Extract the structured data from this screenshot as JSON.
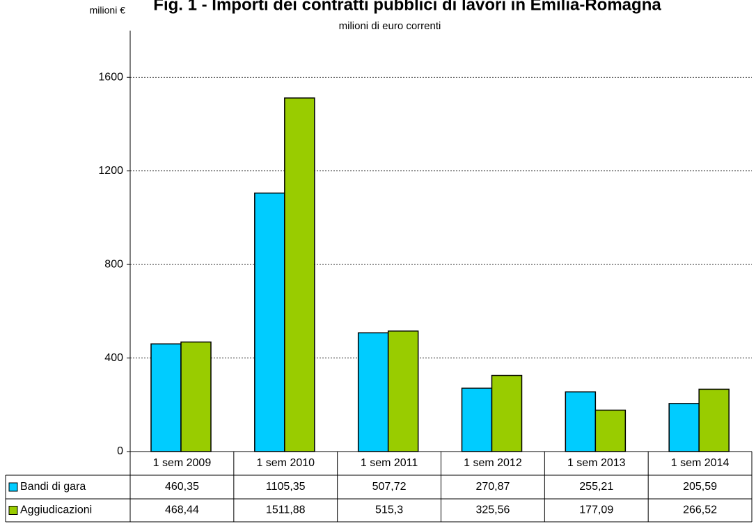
{
  "chart_data": {
    "type": "bar",
    "title": "Fig. 1 - Importi dei contratti pubblici di lavori in Emilia-Romagna",
    "subtitle": "milioni di euro correnti",
    "y_label": "milioni €",
    "categories": [
      "1 sem 2009",
      "1 sem 2010",
      "1 sem 2011",
      "1 sem 2012",
      "1 sem 2013",
      "1 sem 2014"
    ],
    "series": [
      {
        "name": "Bandi di gara",
        "color": "#00ccff",
        "values": [
          460.35,
          1105.35,
          507.72,
          270.87,
          255.21,
          205.59
        ],
        "value_labels": [
          "460,35",
          "1105,35",
          "507,72",
          "270,87",
          "255,21",
          "205,59"
        ]
      },
      {
        "name": "Aggiudicazioni",
        "color": "#99cc00",
        "values": [
          468.44,
          1511.88,
          515.3,
          325.56,
          177.09,
          266.52
        ],
        "value_labels": [
          "468,44",
          "1511,88",
          "515,3",
          "325,56",
          "177,09",
          "266,52"
        ]
      }
    ],
    "ylim": [
      0,
      1800
    ],
    "yticks": [
      0,
      400,
      800,
      1200,
      1600
    ],
    "grid": true
  }
}
